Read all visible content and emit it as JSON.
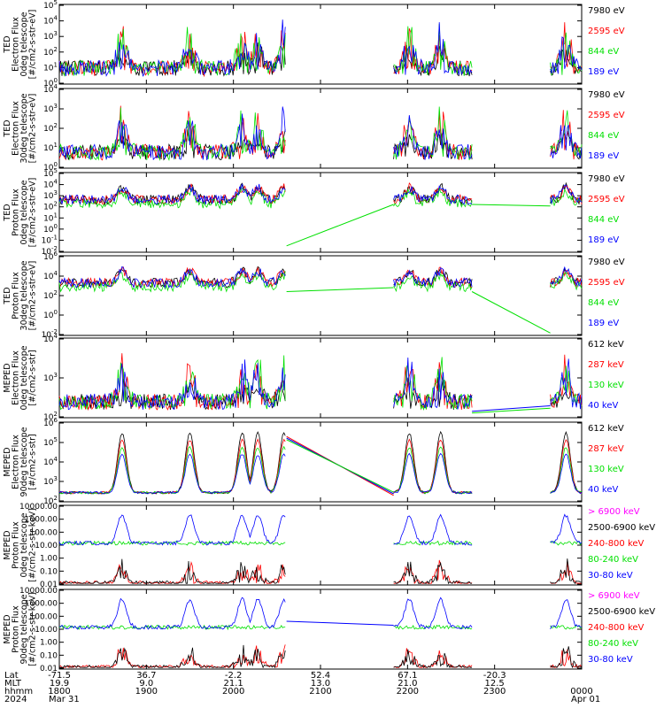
{
  "colors": {
    "black": "#000000",
    "red": "#ff0000",
    "green": "#00e000",
    "blue": "#0000ff",
    "magenta": "#ff00ff"
  },
  "panels": [
    {
      "ylabel_lines": [
        "TED",
        "Electron Flux",
        "0deg telescope",
        "[#/cm2-s-str-eV]"
      ],
      "yticks": [
        "10^0",
        "10^1",
        "10^2",
        "10^3",
        "10^4",
        "10^5"
      ],
      "legend": [
        {
          "label": "7980 eV",
          "color": "#000000"
        },
        {
          "label": "2595 eV",
          "color": "#ff0000"
        },
        {
          "label": "844 eV",
          "color": "#00e000"
        },
        {
          "label": "189 eV",
          "color": "#0000ff"
        }
      ]
    },
    {
      "ylabel_lines": [
        "TED",
        "Electron Flux",
        "30deg telescope",
        "[#/cm2-s-str-eV]"
      ],
      "yticks": [
        "10^0",
        "10^1",
        "10^2",
        "10^3",
        "10^4"
      ],
      "legend": [
        {
          "label": "7980 eV",
          "color": "#000000"
        },
        {
          "label": "2595 eV",
          "color": "#ff0000"
        },
        {
          "label": "844 eV",
          "color": "#00e000"
        },
        {
          "label": "189 eV",
          "color": "#0000ff"
        }
      ]
    },
    {
      "ylabel_lines": [
        "TED",
        "Proton Flux",
        "0deg telescope",
        "[#/cm2-s-str-eV]"
      ],
      "yticks": [
        "10^-2",
        "10^-1",
        "10^0",
        "10^1",
        "10^2",
        "10^3",
        "10^4",
        "10^5"
      ],
      "legend": [
        {
          "label": "7980 eV",
          "color": "#000000"
        },
        {
          "label": "2595 eV",
          "color": "#ff0000"
        },
        {
          "label": "844 eV",
          "color": "#00e000"
        },
        {
          "label": "189 eV",
          "color": "#0000ff"
        }
      ]
    },
    {
      "ylabel_lines": [
        "TED",
        "Proton Flux",
        "30deg telescope",
        "[#/cm2-s-str-eV]"
      ],
      "yticks": [
        "10^-2",
        "10^0",
        "10^2",
        "10^4",
        "10^6"
      ],
      "legend": [
        {
          "label": "7980 eV",
          "color": "#000000"
        },
        {
          "label": "2595 eV",
          "color": "#ff0000"
        },
        {
          "label": "844 eV",
          "color": "#00e000"
        },
        {
          "label": "189 eV",
          "color": "#0000ff"
        }
      ]
    },
    {
      "ylabel_lines": [
        "MEPED",
        "Electron Flux",
        "0deg telescope",
        "[#/cm2-s-str]"
      ],
      "yticks": [
        "10^2",
        "10^3",
        "10^4"
      ],
      "legend": [
        {
          "label": "612 keV",
          "color": "#000000"
        },
        {
          "label": "287 keV",
          "color": "#ff0000"
        },
        {
          "label": "130 keV",
          "color": "#00e000"
        },
        {
          "label": "40 keV",
          "color": "#0000ff"
        }
      ]
    },
    {
      "ylabel_lines": [
        "MEPED",
        "Electron Flux",
        "90deg telescope",
        "[#/cm2-s-str]"
      ],
      "yticks": [
        "10^2",
        "10^3",
        "10^4",
        "10^5",
        "10^6"
      ],
      "legend": [
        {
          "label": "612 keV",
          "color": "#000000"
        },
        {
          "label": "287 keV",
          "color": "#ff0000"
        },
        {
          "label": "130 keV",
          "color": "#00e000"
        },
        {
          "label": "40 keV",
          "color": "#0000ff"
        }
      ]
    },
    {
      "ylabel_lines": [
        "MEPED",
        "Proton Flux",
        "0deg telescope",
        "[#/cm2-s-str-keV]"
      ],
      "yticks": [
        "0.01",
        "0.10",
        "1.00",
        "10.00",
        "100.00",
        "1000.00",
        "10000.00"
      ],
      "legend": [
        {
          "label": "> 6900 keV",
          "color": "#ff00ff"
        },
        {
          "label": "2500-6900 keV",
          "color": "#000000"
        },
        {
          "label": "240-800 keV",
          "color": "#ff0000"
        },
        {
          "label": "80-240 keV",
          "color": "#00e000"
        },
        {
          "label": "30-80 keV",
          "color": "#0000ff"
        }
      ]
    },
    {
      "ylabel_lines": [
        "MEPED",
        "Proton Flux",
        "90deg telescope",
        "[#/cm2-s-str-keV]"
      ],
      "yticks": [
        "0.01",
        "0.10",
        "1.00",
        "10.00",
        "100.00",
        "1000.00",
        "10000.00"
      ],
      "legend": [
        {
          "label": "> 6900 keV",
          "color": "#ff00ff"
        },
        {
          "label": "2500-6900 keV",
          "color": "#000000"
        },
        {
          "label": "240-800 keV",
          "color": "#ff0000"
        },
        {
          "label": "80-240 keV",
          "color": "#00e000"
        },
        {
          "label": "30-80 keV",
          "color": "#0000ff"
        }
      ]
    }
  ],
  "xaxis": {
    "row_labels": [
      "Lat",
      "MLT",
      "hhmm",
      "2024"
    ],
    "lat": [
      "-71.5",
      "36.7",
      "-2.2",
      "52.4",
      "67.1",
      "-20.3"
    ],
    "mlt": [
      "19.9",
      "9.0",
      "21.1",
      "13.0",
      "21.0",
      "12.5"
    ],
    "hhmm": [
      "1800",
      "1900",
      "2000",
      "2100",
      "2200",
      "2300",
      "0000"
    ],
    "date_start": "Mar 31",
    "date_end": "Apr 01"
  },
  "chart_data": {
    "type": "line",
    "x_time": [
      "1800",
      "1900",
      "2000",
      "2100",
      "2200",
      "2300",
      "0000"
    ],
    "data_gaps": [
      [
        "2038",
        "2150"
      ],
      [
        "2312",
        "2340"
      ]
    ],
    "bursts_hhmm": [
      "1836",
      "1920",
      "2000",
      "2010",
      "2030",
      "2209",
      "2332",
      "2345"
    ],
    "series_note": "",
    "ylog": true
  }
}
